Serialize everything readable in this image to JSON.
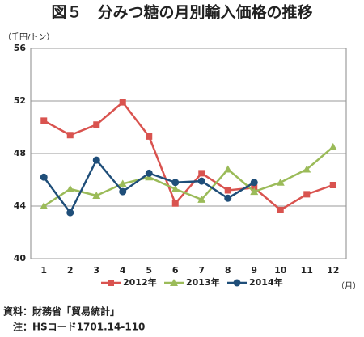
{
  "chart_data": {
    "type": "line",
    "title": "図５　分みつ糖の月別輸入価格の推移",
    "y_unit": "（千円/トン）",
    "x_unit": "（月）",
    "categories": [
      "1",
      "2",
      "3",
      "4",
      "5",
      "6",
      "7",
      "8",
      "9",
      "10",
      "11",
      "12"
    ],
    "series": [
      {
        "name": "2012年",
        "color": "#d9534f",
        "marker": "square",
        "values": [
          50.5,
          49.4,
          50.2,
          51.9,
          49.3,
          44.2,
          46.5,
          45.2,
          45.4,
          43.7,
          44.9,
          45.6
        ]
      },
      {
        "name": "2013年",
        "color": "#9bbb59",
        "marker": "triangle",
        "values": [
          44.0,
          45.3,
          44.8,
          45.7,
          46.2,
          45.3,
          44.5,
          46.8,
          45.1,
          45.8,
          46.8,
          48.5
        ]
      },
      {
        "name": "2014年",
        "color": "#1f4e79",
        "marker": "circle",
        "values": [
          46.2,
          43.5,
          47.5,
          45.1,
          46.5,
          45.8,
          45.9,
          44.6,
          45.8,
          null,
          null,
          null
        ]
      }
    ],
    "ylim": [
      40,
      56
    ],
    "yticks": [
      40,
      44,
      48,
      52,
      56
    ],
    "grid": true,
    "legend": "bottom",
    "notes": [
      "資料：財務省「貿易統計」",
      "注：HSコード1701.14-110"
    ]
  }
}
